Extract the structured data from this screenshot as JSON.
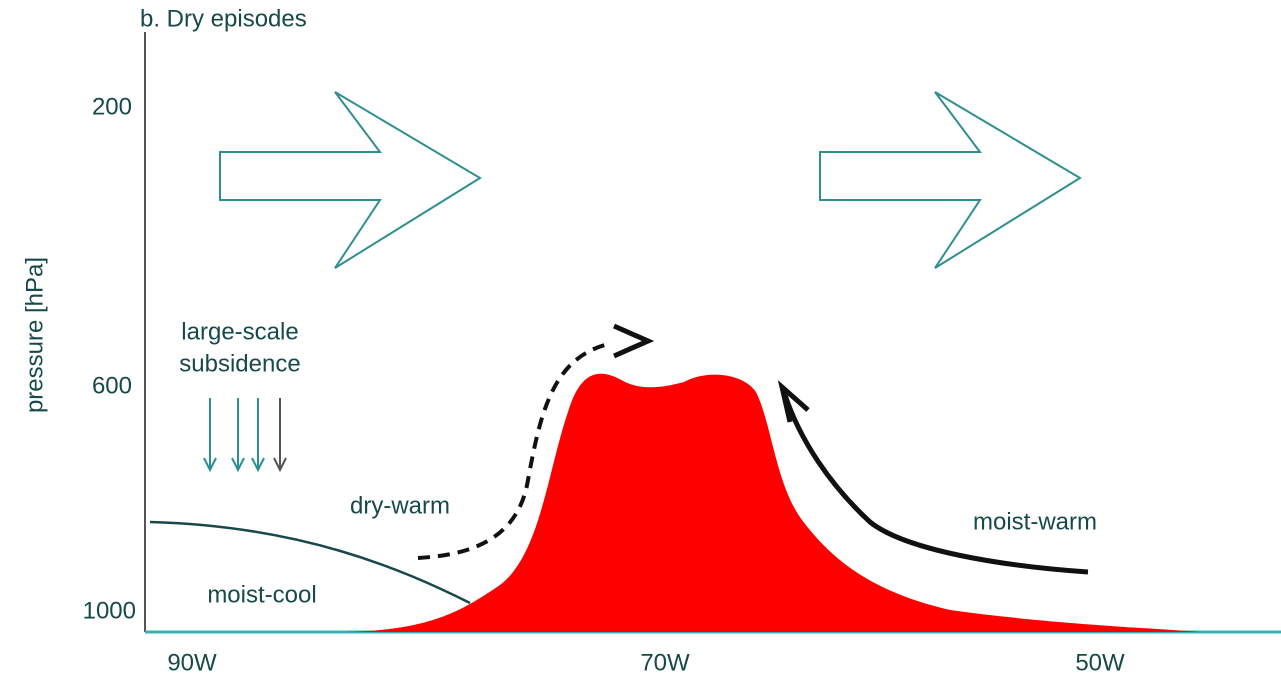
{
  "title": "b. Dry episodes",
  "y_axis": {
    "label": "pressure [hPa]",
    "ticks": [
      "200",
      "600",
      "1000"
    ]
  },
  "x_axis": {
    "ticks": [
      "90W",
      "70W",
      "50W"
    ]
  },
  "annotations": {
    "subsidence": [
      "large-scale",
      "subsidence"
    ],
    "dry_warm": "dry-warm",
    "moist_cool": "moist-cool",
    "moist_warm": "moist-warm"
  }
}
